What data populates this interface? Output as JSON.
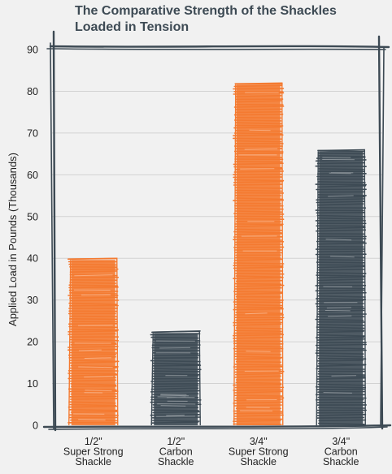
{
  "chart_data": {
    "type": "bar",
    "title_lines": [
      "The Comparative Strength of the Shackles",
      "Loaded in Tension"
    ],
    "ylabel": "Applied Load in Pounds (Thousands)",
    "ylim": [
      0,
      90
    ],
    "yticks": [
      0,
      10,
      20,
      30,
      40,
      50,
      60,
      70,
      80,
      90
    ],
    "grid": true,
    "categories": [
      [
        "1/2\"",
        "Super Strong",
        "Shackle"
      ],
      [
        "1/2\"",
        "Carbon",
        "Shackle"
      ],
      [
        "3/4\"",
        "Super Strong",
        "Shackle"
      ],
      [
        "3/4\"",
        "Carbon",
        "Shackle"
      ]
    ],
    "values": [
      40,
      22.5,
      82,
      66
    ],
    "bar_colors": [
      "#f47a30",
      "#3d4a54",
      "#f47a30",
      "#3d4a54"
    ],
    "frame_color": "#3d4a54"
  }
}
